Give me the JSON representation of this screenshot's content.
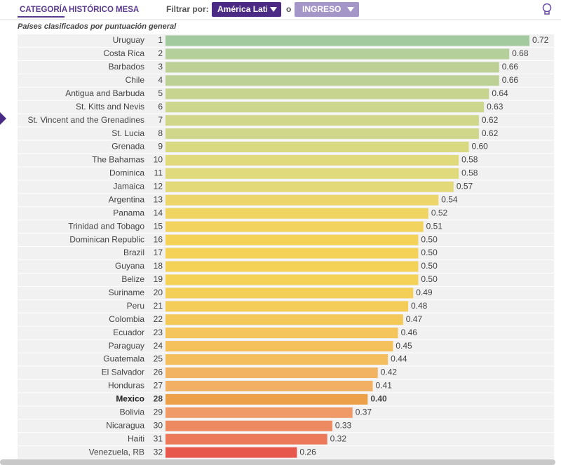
{
  "ui": {
    "tabs": [
      "CATEGORÍA",
      "HISTÓRICO",
      "MESA"
    ],
    "filter_label": "Filtrar por:",
    "region": "América Latin",
    "connector": "o",
    "income": "INGRESO"
  },
  "chart_data": {
    "type": "bar",
    "orientation": "horizontal",
    "subtitle": "Países clasificados por puntuación general",
    "categories": [
      "Uruguay",
      "Costa Rica",
      "Barbados",
      "Chile",
      "Antigua and Barbuda",
      "St. Kitts and Nevis",
      "St. Vincent and the Grenadines",
      "St. Lucia",
      "Grenada",
      "The Bahamas",
      "Dominica",
      "Jamaica",
      "Argentina",
      "Panama",
      "Trinidad and Tobago",
      "Dominican Republic",
      "Brazil",
      "Guyana",
      "Belize",
      "Suriname",
      "Peru",
      "Colombia",
      "Ecuador",
      "Paraguay",
      "Guatemala",
      "El Salvador",
      "Honduras",
      "Mexico",
      "Bolivia",
      "Nicaragua",
      "Haiti",
      "Venezuela, RB"
    ],
    "ranks": [
      1,
      2,
      3,
      4,
      5,
      6,
      7,
      8,
      9,
      10,
      11,
      12,
      13,
      14,
      15,
      16,
      17,
      18,
      19,
      20,
      21,
      22,
      23,
      24,
      25,
      26,
      27,
      28,
      29,
      30,
      31,
      32
    ],
    "values": [
      0.72,
      0.68,
      0.66,
      0.66,
      0.64,
      0.63,
      0.62,
      0.62,
      0.6,
      0.58,
      0.58,
      0.57,
      0.54,
      0.52,
      0.51,
      0.5,
      0.5,
      0.5,
      0.5,
      0.49,
      0.48,
      0.47,
      0.46,
      0.45,
      0.44,
      0.42,
      0.41,
      0.4,
      0.37,
      0.33,
      0.32,
      0.26
    ],
    "value_labels": [
      "0.72",
      "0.68",
      "0.66",
      "0.66",
      "0.64",
      "0.63",
      "0.62",
      "0.62",
      "0.60",
      "0.58",
      "0.58",
      "0.57",
      "0.54",
      "0.52",
      "0.51",
      "0.50",
      "0.50",
      "0.50",
      "0.50",
      "0.49",
      "0.48",
      "0.47",
      "0.46",
      "0.45",
      "0.44",
      "0.42",
      "0.41",
      "0.40",
      "0.37",
      "0.33",
      "0.32",
      "0.26"
    ],
    "colors": [
      "#a3c99e",
      "#b5cf9a",
      "#bdd196",
      "#bdd196",
      "#c6d48f",
      "#ccd68c",
      "#d0d78a",
      "#d0d78a",
      "#d9d982",
      "#e0da7c",
      "#e0da7c",
      "#e4d978",
      "#ecd56a",
      "#f0d462",
      "#f2d35e",
      "#f4d258",
      "#f4d258",
      "#f4d258",
      "#f4d258",
      "#f4cf58",
      "#f4cc58",
      "#f4c858",
      "#f4c55a",
      "#f4c15c",
      "#f4bd5e",
      "#f2b462",
      "#f2b064",
      "#eda04a",
      "#f09a68",
      "#ee8a62",
      "#ec7a5a",
      "#e8574c"
    ],
    "highlighted_category": "Mexico"
  }
}
